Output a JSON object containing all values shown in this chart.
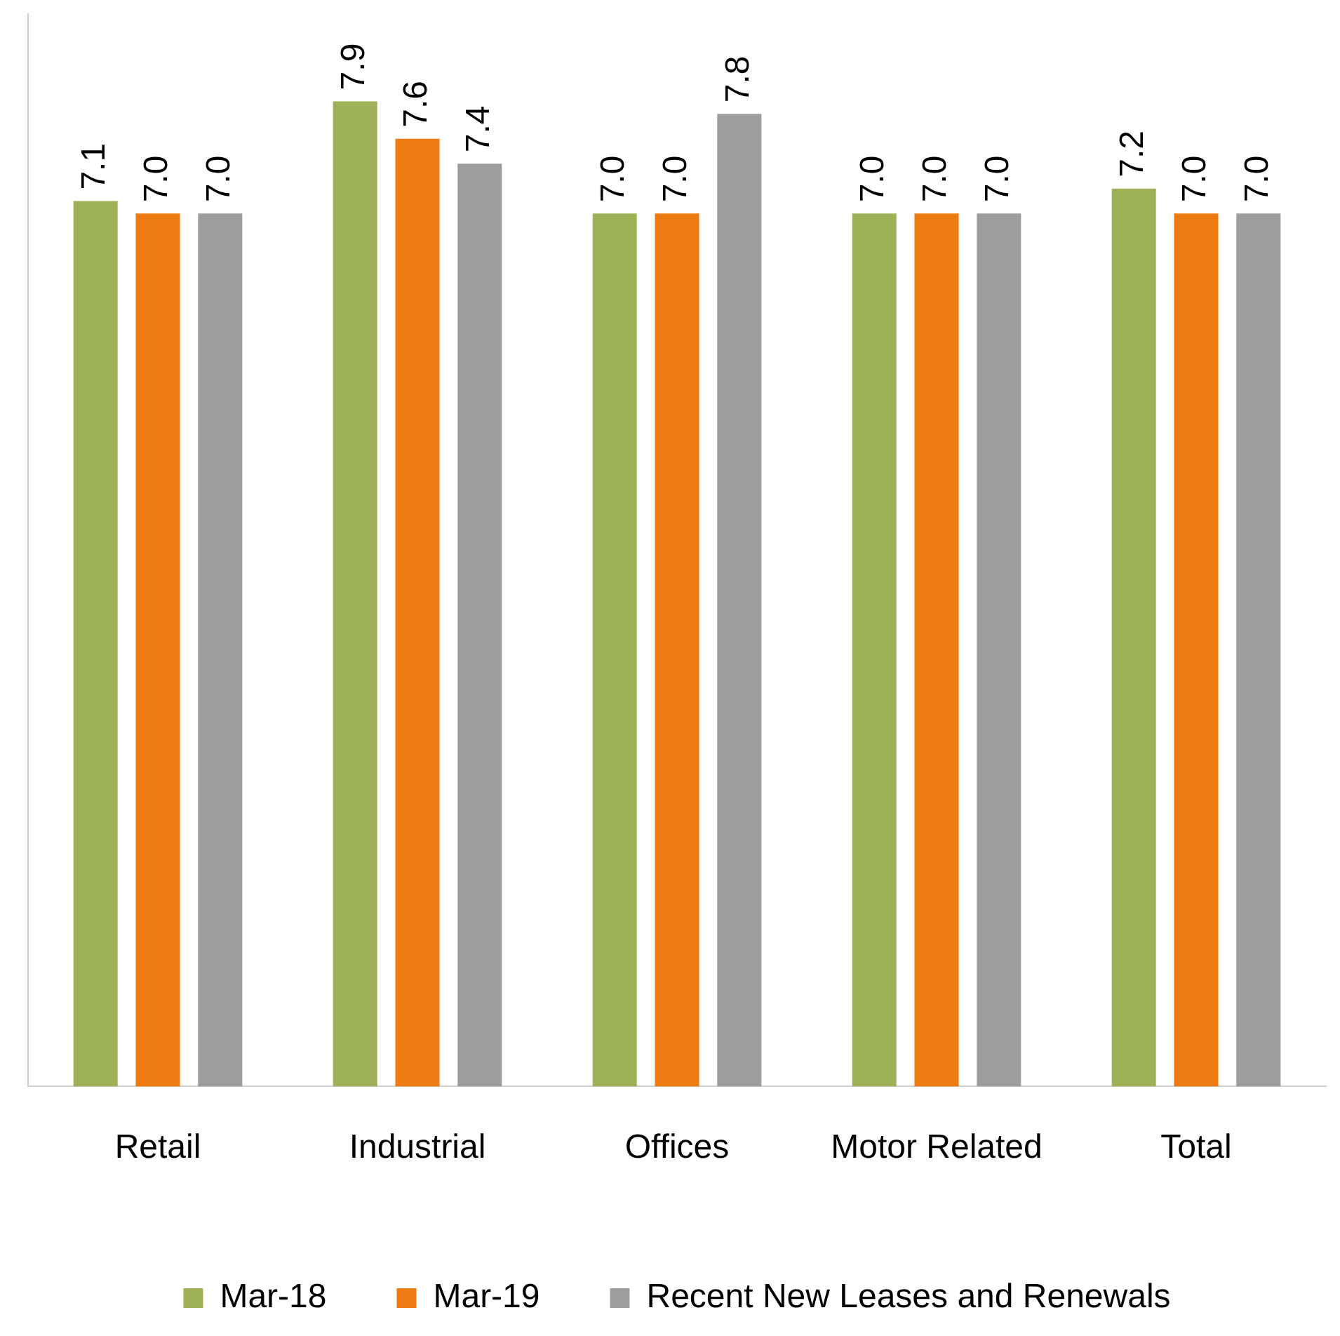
{
  "chart_data": {
    "type": "bar",
    "categories": [
      "Retail",
      "Industrial",
      "Offices",
      "Motor Related",
      "Total"
    ],
    "series": [
      {
        "name": "Mar-18",
        "color": "#9fb157",
        "values": [
          7.1,
          7.9,
          7.0,
          7.0,
          7.2
        ],
        "value_labels": [
          "7.1",
          "7.9",
          "7.0",
          "7.0",
          "7.2"
        ]
      },
      {
        "name": "Mar-19",
        "color": "#ee7b12",
        "values": [
          7.0,
          7.6,
          7.0,
          7.0,
          7.0
        ],
        "value_labels": [
          "7.0",
          "7.6",
          "7.0",
          "7.0",
          "7.0"
        ]
      },
      {
        "name": "Recent New Leases and Renewals",
        "color": "#9d9d9d",
        "values": [
          7.0,
          7.4,
          7.8,
          7.0,
          7.0
        ],
        "value_labels": [
          "7.0",
          "7.4",
          "7.8",
          "7.0",
          "7.0"
        ]
      }
    ],
    "ylim": [
      0,
      8.6
    ],
    "tick_labels": "x",
    "grid": false,
    "legend": "bottom"
  }
}
